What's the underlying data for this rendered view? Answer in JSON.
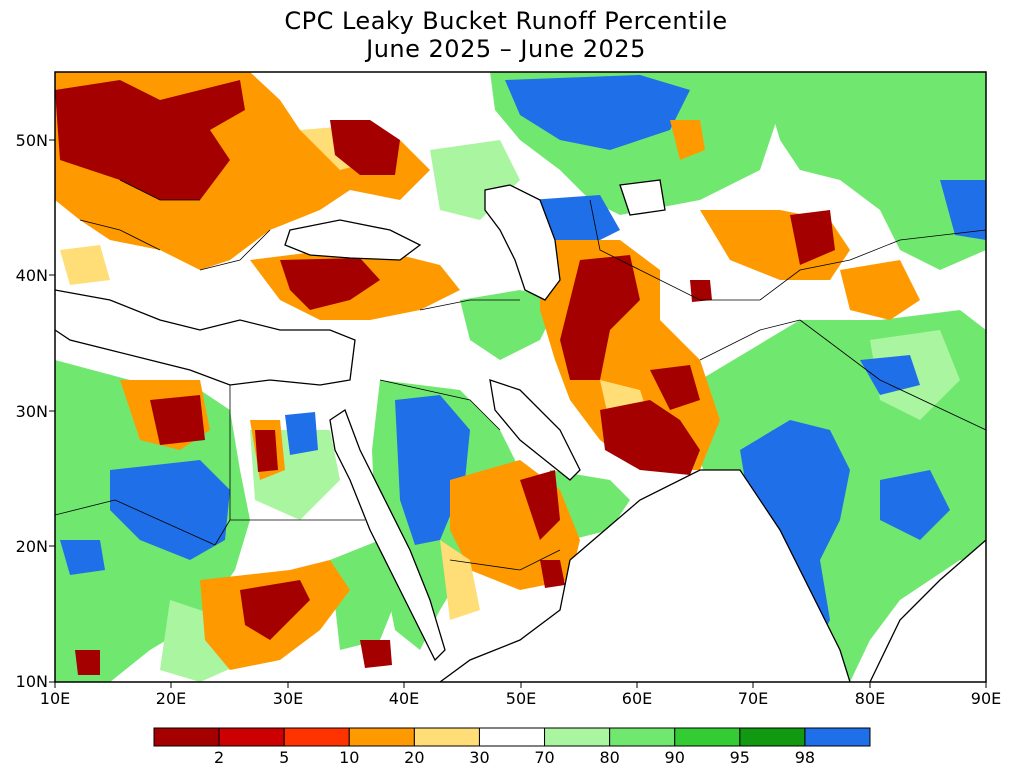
{
  "title": {
    "line1": "CPC Leaky Bucket Runoff Percentile",
    "line2": "June 2025 – June 2025"
  },
  "map": {
    "region": "Middle East and South Asia",
    "projection": "equirectangular",
    "lon_range_deg": [
      10,
      90
    ],
    "lat_range_deg": [
      10,
      55
    ],
    "lat_ticks": [
      "10N",
      "20N",
      "30N",
      "40N",
      "50N"
    ],
    "lon_ticks": [
      "10E",
      "20E",
      "30E",
      "40E",
      "50E",
      "60E",
      "70E",
      "80E",
      "90E"
    ],
    "frame_color": "#000000",
    "coastline_color": "#000000"
  },
  "legend": {
    "labels": [
      "2",
      "5",
      "10",
      "20",
      "30",
      "70",
      "80",
      "90",
      "95",
      "98"
    ],
    "colors": [
      "#a50000",
      "#cc0000",
      "#ff3300",
      "#ff9900",
      "#ffdd77",
      "#ffffff",
      "#aaf5a0",
      "#70e870",
      "#33cc33",
      "#119911",
      "#1f6fe8"
    ]
  },
  "colors": {
    "very_dry": "#a50000",
    "dry": "#ff9900",
    "normal": "#ffffff",
    "wet": "#70e870",
    "very_wet": "#1f6fe8",
    "sea": "#ffffff"
  }
}
